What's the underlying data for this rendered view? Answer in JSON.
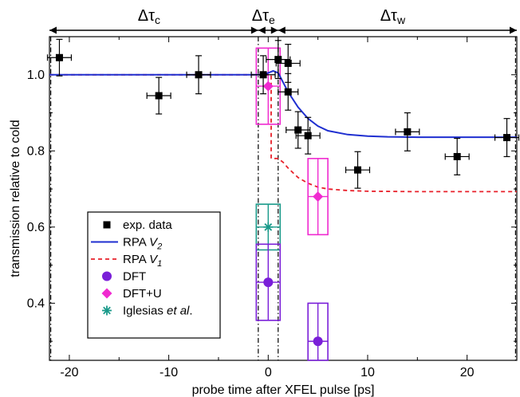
{
  "chart_data": {
    "type": "scatter",
    "xlabel": "probe time after XFEL pulse [ps]",
    "ylabel": "transmission relative to cold",
    "xlim": [
      -22,
      25
    ],
    "ylim": [
      0.25,
      1.1
    ],
    "xticks": [
      -20,
      -10,
      0,
      10,
      20
    ],
    "yticks": [
      0.4,
      0.6,
      0.8,
      1.0
    ],
    "ytick_labels": [
      "0.4",
      "0.6",
      "0.8",
      "1.0"
    ],
    "grid": false,
    "legend_position": "lower-left",
    "colors": {
      "exp": "#000000",
      "rpa_v2": "#1f2fd0",
      "rpa_v1": "#e8202a",
      "dft": "#7a1fd8",
      "dft_u": "#f02ad0",
      "iglesias": "#1a9a8a"
    },
    "regions": [
      {
        "symbol": "Δτ",
        "sub": "c",
        "x_start": -22,
        "x_end": -1.0
      },
      {
        "symbol": "Δτ",
        "sub": "e",
        "x_start": -1.0,
        "x_end": 1.0
      },
      {
        "symbol": "Δτ",
        "sub": "w",
        "x_start": 1.0,
        "x_end": 25
      }
    ],
    "region_boundaries": [
      -1.0,
      1.0
    ],
    "series": [
      {
        "name": "exp. data",
        "marker": "square",
        "points": [
          {
            "x": -21,
            "y": 1.045,
            "xerr": 1.2,
            "yerr": 0.048
          },
          {
            "x": -11,
            "y": 0.945,
            "xerr": 1.2,
            "yerr": 0.048
          },
          {
            "x": -7,
            "y": 1.0,
            "xerr": 1.2,
            "yerr": 0.05
          },
          {
            "x": -0.5,
            "y": 1.0,
            "xerr": 1.2,
            "yerr": 0.05
          },
          {
            "x": 1.0,
            "y": 1.04,
            "xerr": 1.2,
            "yerr": 0.05
          },
          {
            "x": 2.0,
            "y": 1.03,
            "xerr": 1.2,
            "yerr": 0.05
          },
          {
            "x": 2.0,
            "y": 0.955,
            "xerr": 1.0,
            "yerr": 0.048
          },
          {
            "x": 3.0,
            "y": 0.855,
            "xerr": 1.2,
            "yerr": 0.048
          },
          {
            "x": 4.0,
            "y": 0.84,
            "xerr": 1.2,
            "yerr": 0.048
          },
          {
            "x": 9.0,
            "y": 0.75,
            "xerr": 1.2,
            "yerr": 0.048
          },
          {
            "x": 14.0,
            "y": 0.85,
            "xerr": 1.2,
            "yerr": 0.05
          },
          {
            "x": 19.0,
            "y": 0.785,
            "xerr": 1.2,
            "yerr": 0.048
          },
          {
            "x": 24.0,
            "y": 0.835,
            "xerr": 1.2,
            "yerr": 0.05
          }
        ]
      },
      {
        "name": "RPA V2",
        "label_base": "RPA ",
        "label_italic": "V",
        "label_sub": "2",
        "style": "solid",
        "curve": {
          "x": [
            -22,
            -0.5,
            0,
            0.5,
            1,
            1.5,
            2,
            3,
            4,
            5,
            6,
            8,
            10,
            12,
            15,
            25
          ],
          "y": [
            1.0,
            1.0,
            1.005,
            1.01,
            1.005,
            0.98,
            0.955,
            0.915,
            0.885,
            0.865,
            0.853,
            0.843,
            0.839,
            0.837,
            0.836,
            0.836
          ]
        }
      },
      {
        "name": "RPA V1",
        "label_base": "RPA ",
        "label_italic": "V",
        "label_sub": "1",
        "style": "dashed",
        "curve": {
          "x": [
            -22,
            -0.5,
            0,
            0.3,
            0.3,
            1,
            1.5,
            2,
            3,
            4,
            5,
            6,
            8,
            10,
            15,
            25
          ],
          "y": [
            1.0,
            1.0,
            1.0,
            1.0,
            0.78,
            0.78,
            0.77,
            0.755,
            0.73,
            0.715,
            0.705,
            0.7,
            0.696,
            0.694,
            0.693,
            0.693
          ]
        }
      },
      {
        "name": "DFT",
        "marker": "circle",
        "points": [
          {
            "x": 0,
            "y": 0.455,
            "box": [
              -1.2,
              1.2,
              0.355,
              0.555
            ]
          },
          {
            "x": 5,
            "y": 0.3,
            "box": [
              4.0,
              6.0,
              0.25,
              0.4
            ]
          }
        ]
      },
      {
        "name": "DFT+U",
        "marker": "diamond",
        "points": [
          {
            "x": 0,
            "y": 0.97,
            "box": [
              -1.2,
              1.2,
              0.87,
              1.07
            ]
          },
          {
            "x": 5,
            "y": 0.68,
            "box": [
              4.0,
              6.0,
              0.58,
              0.78
            ]
          }
        ]
      },
      {
        "name": "Iglesias et al.",
        "label_base": "Iglesias ",
        "label_italic": "et al",
        "label_tail": ".",
        "marker": "asterisk",
        "points": [
          {
            "x": 0,
            "y": 0.6,
            "box": [
              -1.2,
              1.2,
              0.54,
              0.66
            ]
          }
        ]
      }
    ]
  }
}
